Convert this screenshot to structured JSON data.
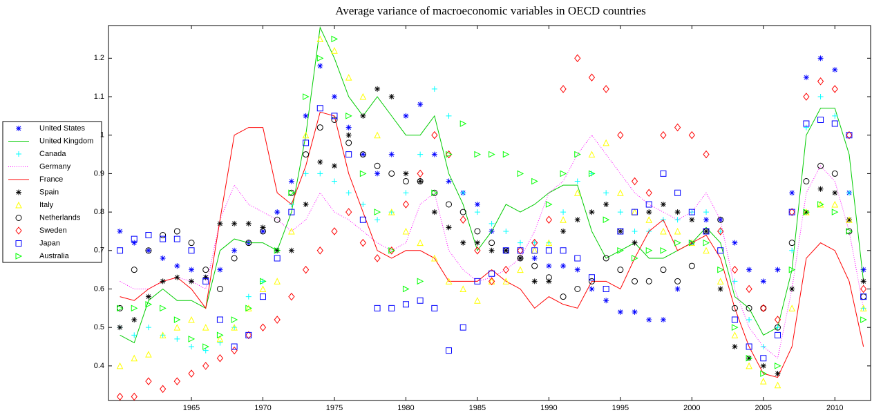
{
  "chart_data": {
    "type": "line",
    "title": "Average variance of macroeconomic variables in OECD countries",
    "x": [
      1960,
      1961,
      1962,
      1963,
      1964,
      1965,
      1966,
      1967,
      1968,
      1969,
      1970,
      1971,
      1972,
      1973,
      1974,
      1975,
      1976,
      1977,
      1978,
      1979,
      1980,
      1981,
      1982,
      1983,
      1984,
      1985,
      1986,
      1987,
      1988,
      1989,
      1990,
      1991,
      1992,
      1993,
      1994,
      1995,
      1996,
      1997,
      1998,
      1999,
      2000,
      2001,
      2002,
      2003,
      2004,
      2005,
      2006,
      2007,
      2008,
      2009,
      2010,
      2011,
      2012
    ],
    "xlim": [
      1959.2,
      2012.5
    ],
    "xticks": [
      1965,
      1970,
      1975,
      1980,
      1985,
      1990,
      1995,
      2000,
      2005,
      2010
    ],
    "ylim": [
      0.31,
      1.285
    ],
    "yticks": [
      0.4,
      0.5,
      0.6,
      0.7,
      0.8,
      0.9,
      1,
      1.1,
      1.2
    ],
    "legend": "outside-left",
    "series": [
      {
        "name": "United States",
        "color": "#0000ff",
        "marker": "*",
        "values": [
          0.75,
          0.72,
          0.7,
          0.68,
          0.66,
          0.65,
          0.63,
          0.65,
          0.7,
          0.72,
          0.75,
          0.8,
          0.88,
          1.05,
          1.18,
          1.1,
          1.02,
          0.95,
          0.9,
          0.95,
          1.05,
          1.08,
          0.95,
          0.88,
          0.85,
          0.82,
          0.75,
          0.7,
          0.68,
          0.68,
          0.66,
          0.66,
          0.65,
          0.6,
          0.57,
          0.54,
          0.54,
          0.52,
          0.52,
          0.6,
          0.72,
          0.78,
          0.78,
          0.72,
          0.65,
          0.62,
          0.65,
          0.85,
          1.15,
          1.2,
          1.17,
          0.85,
          0.65
        ]
      },
      {
        "name": "United Kingdom",
        "color": "#00cc00",
        "marker": "-",
        "values": [
          0.48,
          0.46,
          0.57,
          0.6,
          0.57,
          0.57,
          0.55,
          0.7,
          0.73,
          0.72,
          0.72,
          0.7,
          0.8,
          1.0,
          1.28,
          1.2,
          1.1,
          1.05,
          1.1,
          1.05,
          1.0,
          1.0,
          1.05,
          0.9,
          0.82,
          0.7,
          0.75,
          0.82,
          0.8,
          0.82,
          0.85,
          0.87,
          0.87,
          0.75,
          0.68,
          0.7,
          0.72,
          0.68,
          0.68,
          0.7,
          0.72,
          0.76,
          0.72,
          0.58,
          0.55,
          0.48,
          0.5,
          0.65,
          1.0,
          1.07,
          1.07,
          0.95,
          0.62
        ]
      },
      {
        "name": "Canada",
        "color": "#00ffff",
        "marker": "+",
        "values": [
          0.5,
          0.48,
          0.5,
          0.48,
          0.47,
          0.45,
          0.44,
          0.46,
          0.5,
          0.58,
          0.62,
          0.7,
          0.82,
          0.9,
          0.9,
          0.88,
          0.85,
          0.82,
          0.78,
          0.8,
          0.85,
          0.95,
          1.12,
          1.05,
          0.85,
          0.8,
          0.77,
          0.75,
          0.72,
          0.72,
          0.72,
          0.8,
          0.88,
          0.9,
          0.85,
          0.8,
          0.75,
          0.75,
          0.78,
          0.78,
          0.8,
          0.8,
          0.75,
          0.62,
          0.52,
          0.45,
          0.5,
          0.7,
          1.02,
          1.1,
          1.05,
          0.85,
          0.55
        ]
      },
      {
        "name": "Germany",
        "color": "#ff00ff",
        "marker": ":",
        "values": [
          0.62,
          0.6,
          0.6,
          0.62,
          0.63,
          0.62,
          0.6,
          0.78,
          0.87,
          0.82,
          0.8,
          0.78,
          0.75,
          0.78,
          0.85,
          0.8,
          0.78,
          0.75,
          0.72,
          0.7,
          0.72,
          0.82,
          0.85,
          0.7,
          0.65,
          0.62,
          0.63,
          0.65,
          0.68,
          0.75,
          0.85,
          0.88,
          0.95,
          1.0,
          0.95,
          0.9,
          0.85,
          0.82,
          0.8,
          0.78,
          0.8,
          0.85,
          0.78,
          0.6,
          0.5,
          0.45,
          0.42,
          0.6,
          0.85,
          0.92,
          0.88,
          0.75,
          0.55
        ]
      },
      {
        "name": "France",
        "color": "#ff0000",
        "marker": "-",
        "values": [
          0.58,
          0.57,
          0.6,
          0.62,
          0.63,
          0.6,
          0.55,
          0.78,
          1.0,
          1.02,
          1.02,
          0.85,
          0.82,
          0.92,
          1.06,
          1.05,
          0.9,
          0.8,
          0.7,
          0.68,
          0.7,
          0.7,
          0.68,
          0.62,
          0.62,
          0.62,
          0.65,
          0.62,
          0.6,
          0.55,
          0.58,
          0.56,
          0.55,
          0.62,
          0.62,
          0.6,
          0.68,
          0.75,
          0.78,
          0.7,
          0.72,
          0.74,
          0.68,
          0.55,
          0.45,
          0.38,
          0.37,
          0.45,
          0.68,
          0.72,
          0.7,
          0.62,
          0.45
        ]
      },
      {
        "name": "Spain",
        "color": "#000000",
        "marker": "*",
        "values": [
          0.5,
          0.52,
          0.58,
          0.62,
          0.63,
          0.62,
          0.63,
          0.77,
          0.77,
          0.77,
          0.76,
          0.7,
          0.7,
          0.82,
          0.93,
          0.92,
          1.0,
          1.05,
          1.12,
          1.1,
          0.9,
          0.88,
          0.8,
          0.76,
          0.72,
          0.72,
          0.7,
          0.7,
          0.68,
          0.62,
          0.62,
          0.75,
          0.78,
          0.8,
          0.82,
          0.75,
          0.72,
          0.8,
          0.82,
          0.8,
          0.78,
          0.75,
          0.6,
          0.45,
          0.42,
          0.4,
          0.38,
          0.6,
          0.8,
          0.86,
          0.85,
          0.78,
          0.62
        ]
      },
      {
        "name": "Italy",
        "color": "#ffff00",
        "marker": "^",
        "values": [
          0.4,
          0.42,
          0.43,
          0.48,
          0.5,
          0.52,
          0.5,
          0.47,
          0.5,
          0.55,
          0.6,
          0.62,
          0.75,
          1.0,
          1.25,
          1.22,
          1.15,
          1.1,
          1.0,
          0.8,
          0.75,
          0.72,
          0.68,
          0.62,
          0.6,
          0.57,
          0.62,
          0.62,
          0.65,
          0.7,
          0.72,
          0.78,
          0.85,
          0.95,
          0.98,
          0.85,
          0.8,
          0.78,
          0.75,
          0.75,
          0.72,
          0.7,
          0.62,
          0.48,
          0.4,
          0.36,
          0.35,
          0.55,
          0.8,
          0.82,
          0.82,
          0.78,
          0.55
        ]
      },
      {
        "name": "Netherlands",
        "color": "#000000",
        "marker": "o",
        "values": [
          0.55,
          0.65,
          0.7,
          0.74,
          0.75,
          0.72,
          0.65,
          0.6,
          0.68,
          0.72,
          0.75,
          0.78,
          0.85,
          0.95,
          1.02,
          1.04,
          0.98,
          0.95,
          0.92,
          0.9,
          0.88,
          0.88,
          0.85,
          0.82,
          0.8,
          0.75,
          0.72,
          0.7,
          0.68,
          0.66,
          0.63,
          0.58,
          0.6,
          0.62,
          0.68,
          0.65,
          0.62,
          0.62,
          0.65,
          0.62,
          0.66,
          0.75,
          0.78,
          0.55,
          0.55,
          0.55,
          0.5,
          0.72,
          0.88,
          0.92,
          0.9,
          0.75,
          0.58
        ]
      },
      {
        "name": "Sweden",
        "color": "#ff0000",
        "marker": "d",
        "values": [
          0.32,
          0.32,
          0.36,
          0.34,
          0.36,
          0.38,
          0.4,
          0.42,
          0.44,
          0.48,
          0.5,
          0.52,
          0.58,
          0.65,
          0.7,
          0.75,
          0.8,
          0.72,
          0.68,
          0.7,
          0.82,
          0.9,
          1.0,
          0.95,
          0.78,
          0.7,
          0.62,
          0.65,
          0.7,
          0.72,
          0.78,
          1.12,
          1.2,
          1.15,
          1.12,
          1.0,
          0.88,
          0.85,
          1.0,
          1.02,
          1.0,
          0.95,
          0.75,
          0.65,
          0.6,
          0.55,
          0.52,
          0.8,
          1.1,
          1.14,
          1.12,
          1.0,
          0.6
        ]
      },
      {
        "name": "Japan",
        "color": "#0000ff",
        "marker": "s",
        "values": [
          0.7,
          0.73,
          0.74,
          0.73,
          0.73,
          0.7,
          0.62,
          0.52,
          0.45,
          0.48,
          0.58,
          0.68,
          0.8,
          0.98,
          1.07,
          1.05,
          0.95,
          0.78,
          0.55,
          0.55,
          0.56,
          0.57,
          0.55,
          0.44,
          0.5,
          0.62,
          0.64,
          0.7,
          0.7,
          0.7,
          0.7,
          0.7,
          0.68,
          0.63,
          0.6,
          0.75,
          0.8,
          0.82,
          0.9,
          0.85,
          0.8,
          0.75,
          0.7,
          0.52,
          0.45,
          0.42,
          0.48,
          0.8,
          1.03,
          1.04,
          1.03,
          1.0,
          0.58
        ]
      },
      {
        "name": "Australia",
        "color": "#00ff00",
        "marker": ">",
        "values": [
          0.55,
          0.55,
          0.56,
          0.55,
          0.52,
          0.47,
          0.45,
          0.48,
          0.52,
          0.55,
          0.62,
          0.7,
          0.85,
          1.1,
          1.2,
          1.25,
          1.05,
          0.9,
          0.8,
          0.7,
          0.6,
          0.62,
          0.85,
          0.95,
          1.03,
          0.95,
          0.95,
          0.95,
          0.9,
          0.88,
          0.82,
          0.9,
          0.95,
          0.9,
          0.78,
          0.7,
          0.68,
          0.7,
          0.7,
          0.72,
          0.72,
          0.72,
          0.65,
          0.5,
          0.42,
          0.38,
          0.4,
          0.65,
          0.8,
          0.82,
          0.8,
          0.75,
          0.52
        ]
      }
    ]
  }
}
